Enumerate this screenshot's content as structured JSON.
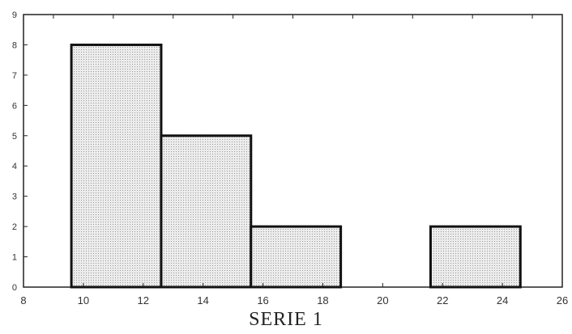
{
  "chart_data": {
    "type": "bar",
    "title": "",
    "xlabel": "SERIE  1",
    "ylabel": "",
    "xlim": [
      8,
      26
    ],
    "ylim": [
      0,
      9
    ],
    "x_ticks": [
      8,
      10,
      12,
      14,
      16,
      18,
      20,
      22,
      24,
      26
    ],
    "y_ticks": [
      0,
      1,
      2,
      3,
      4,
      5,
      6,
      7,
      8,
      9
    ],
    "grid": false,
    "bars": [
      {
        "x0": 9.6,
        "x1": 12.6,
        "value": 8
      },
      {
        "x0": 12.6,
        "x1": 15.6,
        "value": 5
      },
      {
        "x0": 15.6,
        "x1": 18.6,
        "value": 2
      },
      {
        "x0": 21.6,
        "x1": 24.6,
        "value": 2
      }
    ],
    "colors": {
      "bar_fill": "#e6e6e6",
      "bar_stroke": "#111111",
      "axis": "#222222"
    }
  }
}
